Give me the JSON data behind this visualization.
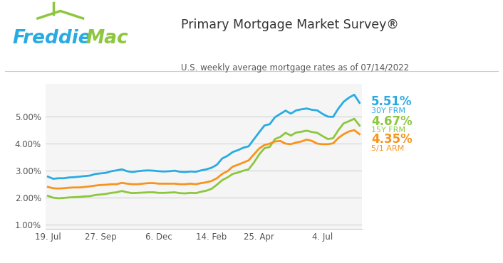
{
  "title_main": "Primary Mortgage Market Survey®",
  "title_sub": "U.S. weekly average mortgage rates as of 07/14/2022",
  "bg_color": "#ffffff",
  "plot_bg_color": "#f5f5f5",
  "colors": {
    "30Y": "#29abe2",
    "15Y": "#8dc63f",
    "ARM": "#f7941d"
  },
  "label_30y": "5.51%",
  "label_15y": "4.67%",
  "label_arm": "4.35%",
  "series_30y": [
    2.78,
    2.7,
    2.72,
    2.72,
    2.75,
    2.76,
    2.78,
    2.8,
    2.82,
    2.88,
    2.9,
    2.92,
    2.98,
    3.01,
    3.05,
    2.98,
    2.95,
    2.98,
    3.0,
    3.01,
    3.0,
    2.98,
    2.97,
    2.98,
    3.0,
    2.96,
    2.95,
    2.97,
    2.96,
    3.01,
    3.05,
    3.11,
    3.22,
    3.45,
    3.55,
    3.69,
    3.76,
    3.85,
    3.9,
    4.16,
    4.42,
    4.67,
    4.72,
    4.98,
    5.1,
    5.22,
    5.11,
    5.23,
    5.27,
    5.3,
    5.25,
    5.23,
    5.1,
    5.0,
    4.99,
    5.3,
    5.55,
    5.7,
    5.81,
    5.51
  ],
  "series_15y": [
    2.07,
    2.0,
    1.98,
    1.99,
    2.01,
    2.02,
    2.03,
    2.05,
    2.06,
    2.1,
    2.12,
    2.14,
    2.18,
    2.2,
    2.25,
    2.2,
    2.17,
    2.18,
    2.19,
    2.2,
    2.2,
    2.18,
    2.18,
    2.19,
    2.2,
    2.17,
    2.16,
    2.18,
    2.17,
    2.22,
    2.26,
    2.33,
    2.48,
    2.65,
    2.75,
    2.88,
    2.93,
    3.0,
    3.05,
    3.3,
    3.6,
    3.83,
    3.88,
    4.17,
    4.25,
    4.4,
    4.3,
    4.41,
    4.44,
    4.48,
    4.43,
    4.4,
    4.28,
    4.17,
    4.2,
    4.5,
    4.75,
    4.83,
    4.92,
    4.67
  ],
  "series_arm": [
    2.4,
    2.35,
    2.34,
    2.35,
    2.37,
    2.38,
    2.38,
    2.4,
    2.42,
    2.45,
    2.47,
    2.48,
    2.5,
    2.5,
    2.55,
    2.52,
    2.5,
    2.5,
    2.52,
    2.54,
    2.54,
    2.52,
    2.52,
    2.52,
    2.52,
    2.5,
    2.5,
    2.52,
    2.5,
    2.54,
    2.57,
    2.62,
    2.72,
    2.88,
    2.98,
    3.15,
    3.22,
    3.3,
    3.38,
    3.6,
    3.82,
    3.95,
    4.0,
    4.08,
    4.1,
    4.0,
    3.98,
    4.04,
    4.08,
    4.15,
    4.1,
    4.0,
    3.98,
    3.98,
    4.01,
    4.21,
    4.35,
    4.45,
    4.5,
    4.35
  ],
  "yticks": [
    1.0,
    2.0,
    3.0,
    4.0,
    5.0
  ],
  "ytick_labels": [
    "1.00%",
    "2.00%",
    "3.00%",
    "4.00%",
    "5.00%"
  ],
  "ylim": [
    0.85,
    6.2
  ],
  "xtick_labels": [
    "19. Jul",
    "27. Sep",
    "6. Dec",
    "14. Feb",
    "25. Apr",
    "4. Jul"
  ],
  "xtick_positions": [
    0,
    10,
    21,
    31,
    40,
    52
  ],
  "freddie_blue": "#29abe2",
  "freddie_green": "#8dc63f",
  "header_color": "#444444",
  "divider_color": "#cccccc"
}
